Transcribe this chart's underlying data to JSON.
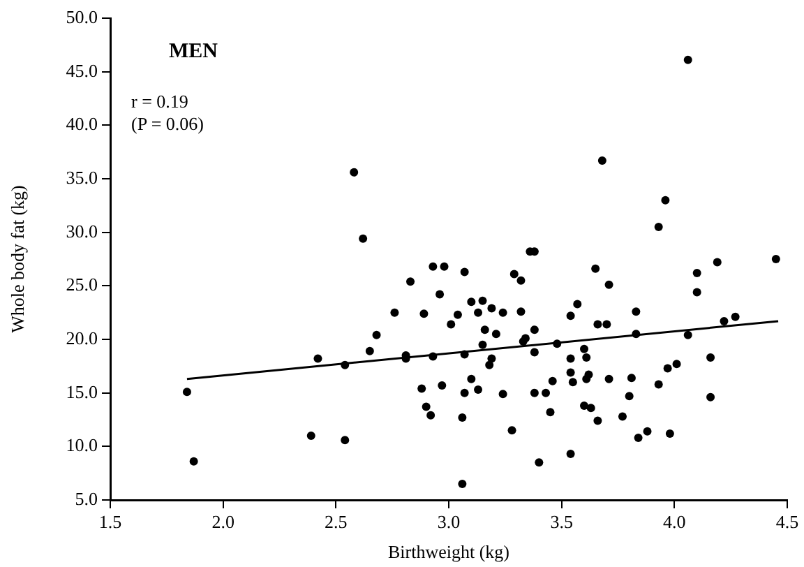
{
  "chart_data": {
    "type": "scatter",
    "title": "MEN",
    "xlabel": "Birthweight (kg)",
    "ylabel": "Whole body fat (kg)",
    "annotations": [
      "r = 0.19",
      "(P = 0.06)"
    ],
    "xlim": [
      1.5,
      4.5
    ],
    "xticks": [
      {
        "value": 1.5,
        "label": "1.5"
      },
      {
        "value": 2,
        "label": "2.0"
      },
      {
        "value": 2.5,
        "label": "2.5"
      },
      {
        "value": 3,
        "label": "3.0"
      },
      {
        "value": 3.5,
        "label": "3.5"
      },
      {
        "value": 4,
        "label": "4.0"
      },
      {
        "value": 4.5,
        "label": "4.5"
      }
    ],
    "ylim": [
      5,
      50
    ],
    "yticks": [
      {
        "value": 5,
        "label": "5.0"
      },
      {
        "value": 10,
        "label": "10.0"
      },
      {
        "value": 15,
        "label": "15.0"
      },
      {
        "value": 20,
        "label": "20.0"
      },
      {
        "value": 25,
        "label": "25.0"
      },
      {
        "value": 30,
        "label": "30.0"
      },
      {
        "value": 35,
        "label": "35.0"
      },
      {
        "value": 40,
        "label": "40.0"
      },
      {
        "value": 45,
        "label": "45.0"
      },
      {
        "value": 50,
        "label": "50.0"
      }
    ],
    "grid": false,
    "series": [
      {
        "color": "#000000",
        "marker": "circle",
        "x": [
          2.58,
          2.62,
          2.83,
          4.06,
          3.68,
          3.96,
          3.93,
          3.36,
          3.38,
          2.93,
          2.98,
          3.07,
          3.29,
          3.32,
          3.65,
          4.1,
          4.19,
          4.45,
          3.71,
          4.1,
          2.96,
          2.89,
          3.04,
          3.1,
          3.15,
          3.13,
          3.19,
          3.24,
          3.32,
          3.57,
          3.54,
          3.83,
          3.01,
          3.16,
          3.21,
          3.38,
          3.66,
          3.7,
          3.34,
          3.33,
          3.15,
          3.48,
          3.83,
          4.06,
          4.22,
          4.27,
          2.93,
          3.07,
          3.38,
          3.6,
          3.19,
          3.18,
          3.54,
          3.61,
          3.54,
          3.55,
          3.62,
          3.61,
          3.71,
          3.81,
          3.97,
          4.01,
          4.16,
          3.93,
          3.8,
          4.16,
          3.1,
          2.97,
          2.88,
          3.13,
          3.07,
          3.24,
          3.38,
          3.43,
          3.46,
          2.9,
          2.92,
          3.06,
          3.45,
          3.6,
          3.63,
          3.66,
          3.77,
          3.28,
          3.84,
          3.88,
          3.98,
          3.54,
          3.4,
          3.06,
          1.87,
          2.39,
          2.54,
          2.76,
          2.68,
          2.65,
          2.42,
          2.54,
          2.81,
          2.81,
          1.84
        ],
        "values": [
          35.6,
          29.4,
          25.4,
          46.1,
          36.7,
          33.0,
          30.5,
          28.2,
          28.2,
          26.8,
          26.8,
          26.3,
          26.1,
          25.5,
          26.6,
          26.2,
          27.2,
          27.5,
          25.1,
          24.4,
          24.2,
          22.4,
          22.3,
          23.5,
          23.6,
          22.5,
          22.9,
          22.5,
          22.6,
          23.3,
          22.2,
          22.6,
          21.4,
          20.9,
          20.5,
          20.9,
          21.4,
          21.4,
          20.1,
          19.8,
          19.5,
          19.6,
          20.5,
          20.4,
          21.7,
          22.1,
          18.4,
          18.6,
          18.8,
          19.1,
          18.2,
          17.6,
          18.2,
          18.3,
          16.9,
          16.0,
          16.7,
          16.3,
          16.3,
          16.4,
          17.3,
          17.7,
          18.3,
          15.8,
          14.7,
          14.6,
          16.3,
          15.7,
          15.4,
          15.3,
          15.0,
          14.9,
          15.0,
          15.0,
          16.1,
          13.7,
          12.9,
          12.7,
          13.2,
          13.8,
          13.6,
          12.4,
          12.8,
          11.5,
          10.8,
          11.4,
          11.2,
          9.3,
          8.5,
          6.5,
          8.6,
          11.0,
          10.6,
          22.5,
          20.4,
          18.9,
          18.2,
          17.6,
          18.5,
          18.2,
          15.1
        ]
      },
      {
        "type": "line",
        "marker": "none",
        "color": "#000000",
        "x": [
          1.84,
          4.46
        ],
        "values": [
          16.3,
          21.7
        ]
      }
    ]
  }
}
